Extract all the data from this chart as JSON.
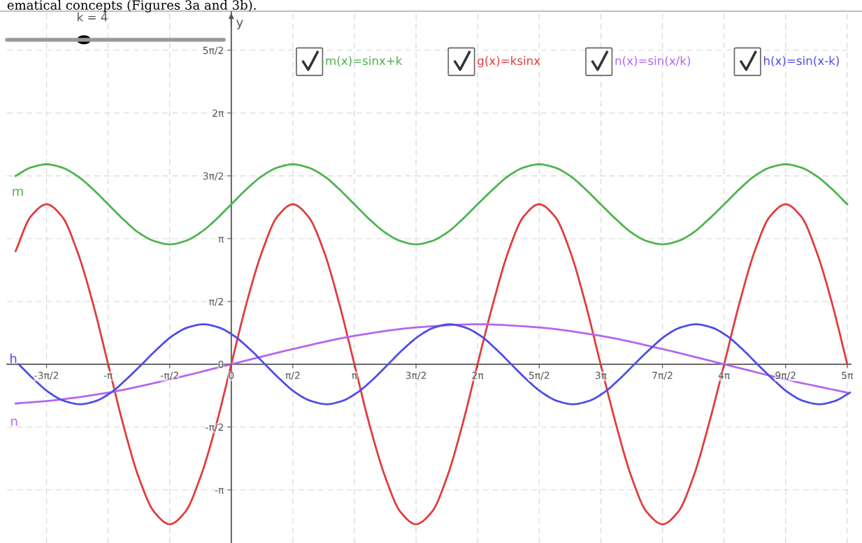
{
  "chart_data": {
    "type": "line",
    "ylabel": "y",
    "legend": "top",
    "grid": true,
    "marker": "none",
    "line_style": "solid",
    "xlim": [
      -5.72,
      15.8
    ],
    "ylim": [
      -4.47,
      8.83
    ],
    "xticks": [
      {
        "value": -4.712,
        "label": "-3π/2"
      },
      {
        "value": -3.1416,
        "label": "-π"
      },
      {
        "value": -1.5708,
        "label": "-π/2"
      },
      {
        "value": 0,
        "label": "0"
      },
      {
        "value": 1.5708,
        "label": "π/2"
      },
      {
        "value": 3.1416,
        "label": "π"
      },
      {
        "value": 4.712,
        "label": "3π/2"
      },
      {
        "value": 6.2832,
        "label": "2π"
      },
      {
        "value": 7.854,
        "label": "5π/2"
      },
      {
        "value": 9.4248,
        "label": "3π"
      },
      {
        "value": 10.9956,
        "label": "7π/2"
      },
      {
        "value": 12.5664,
        "label": "4π"
      },
      {
        "value": 14.1372,
        "label": "9π/2"
      },
      {
        "value": 15.708,
        "label": "5π"
      }
    ],
    "yticks": [
      {
        "value": -3.1416,
        "label": "-π"
      },
      {
        "value": -1.5708,
        "label": "-π/2"
      },
      {
        "value": 0,
        "label": "0"
      },
      {
        "value": 1.5708,
        "label": "π/2"
      },
      {
        "value": 3.1416,
        "label": "π"
      },
      {
        "value": 4.712,
        "label": "3π/2"
      },
      {
        "value": 6.2832,
        "label": "2π"
      },
      {
        "value": 7.854,
        "label": "5π/2"
      }
    ],
    "annotations": [
      "ematical concepts (Figures 3a and 3b).",
      "k = 4",
      "m",
      "h",
      "n"
    ],
    "series": [
      {
        "name": "m(x)=sinx+k",
        "color": "#4db34d",
        "x": [
          -5.5,
          -5.11,
          -4.71,
          -4.32,
          -3.93,
          -3.53,
          -3.14,
          -2.75,
          -2.36,
          -1.96,
          -1.57,
          -1.18,
          -0.79,
          -0.39,
          0,
          0.39,
          0.79,
          1.18,
          1.57,
          1.96,
          2.36,
          2.75,
          3.14,
          3.53,
          3.93,
          4.32,
          4.71,
          5.11,
          5.5,
          5.89,
          6.28,
          6.68,
          7.07,
          7.46,
          7.85,
          8.25,
          8.64,
          9.03,
          9.42,
          9.82,
          10.21,
          10.6,
          11.0,
          11.39,
          11.78,
          12.17,
          12.57,
          12.96,
          13.35,
          13.74,
          14.14,
          14.53,
          14.92,
          15.32,
          15.71
        ],
        "values": [
          4.71,
          4.92,
          5,
          4.92,
          4.71,
          4.38,
          4,
          3.62,
          3.29,
          3.08,
          3,
          3.08,
          3.29,
          3.62,
          4,
          4.38,
          4.71,
          4.92,
          5,
          4.92,
          4.71,
          4.38,
          4,
          3.62,
          3.29,
          3.08,
          3,
          3.08,
          3.29,
          3.62,
          4,
          4.38,
          4.71,
          4.92,
          5,
          4.92,
          4.71,
          4.38,
          4,
          3.62,
          3.29,
          3.08,
          3,
          3.08,
          3.29,
          3.62,
          4,
          4.38,
          4.71,
          4.92,
          5,
          4.92,
          4.71,
          4.38,
          4
        ]
      },
      {
        "name": "g(x)=ksinx",
        "color": "#e03c3c",
        "x": [
          -5.5,
          -5.11,
          -4.71,
          -4.32,
          -3.93,
          -3.53,
          -3.14,
          -2.75,
          -2.36,
          -1.96,
          -1.57,
          -1.18,
          -0.79,
          -0.39,
          0,
          0.39,
          0.79,
          1.18,
          1.57,
          1.96,
          2.36,
          2.75,
          3.14,
          3.53,
          3.93,
          4.32,
          4.71,
          5.11,
          5.5,
          5.89,
          6.28,
          6.68,
          7.07,
          7.46,
          7.85,
          8.25,
          8.64,
          9.03,
          9.42,
          9.82,
          10.21,
          10.6,
          11.0,
          11.39,
          11.78,
          12.17,
          12.57,
          12.96,
          13.35,
          13.74,
          14.14,
          14.53,
          14.92,
          15.32,
          15.71
        ],
        "values": [
          2.83,
          3.7,
          4,
          3.7,
          2.83,
          1.53,
          0,
          -1.53,
          -2.83,
          -3.7,
          -4,
          -3.7,
          -2.83,
          -1.53,
          0,
          1.53,
          2.83,
          3.7,
          4,
          3.7,
          2.83,
          1.53,
          0,
          -1.53,
          -2.83,
          -3.7,
          -4,
          -3.7,
          -2.83,
          -1.53,
          0,
          1.53,
          2.83,
          3.7,
          4,
          3.7,
          2.83,
          1.53,
          0,
          -1.53,
          -2.83,
          -3.7,
          -4,
          -3.7,
          -2.83,
          -1.53,
          0,
          1.53,
          2.83,
          3.7,
          4,
          3.7,
          2.83,
          1.53,
          0
        ]
      },
      {
        "name": "n(x)=sin(x/k)",
        "color": "#b366f2",
        "x": [
          -5.5,
          -4.71,
          -3.14,
          -1.57,
          0,
          1.57,
          3.14,
          4.71,
          6.28,
          7.85,
          9.42,
          11.0,
          12.57,
          14.14,
          15.71
        ],
        "values": [
          -0.98,
          -0.92,
          -0.71,
          -0.38,
          0,
          0.38,
          0.71,
          0.92,
          1,
          0.92,
          0.71,
          0.38,
          0,
          -0.38,
          -0.71
        ]
      },
      {
        "name": "h(x)=sin(x-k)",
        "color": "#4d4de6",
        "x": [
          -5.42,
          -5.03,
          -4.64,
          -4.25,
          -3.85,
          -3.46,
          -3.07,
          -2.68,
          -2.28,
          -1.89,
          -1.5,
          -1.11,
          -0.71,
          -0.32,
          0.07,
          0.47,
          0.86,
          1.25,
          1.64,
          2.04,
          2.43,
          2.82,
          3.21,
          3.61,
          4.0,
          4.39,
          4.79,
          5.18,
          5.57,
          5.96,
          6.36,
          6.75,
          7.14,
          7.53,
          7.93,
          8.32,
          8.71,
          9.11,
          9.5,
          9.89,
          10.28,
          10.68,
          11.07,
          11.46,
          11.85,
          12.25,
          12.64,
          13.03,
          13.42,
          13.82,
          14.21,
          14.6,
          15.0,
          15.39,
          15.78
        ],
        "values": [
          0,
          -0.38,
          -0.71,
          -0.92,
          -1,
          -0.92,
          -0.71,
          -0.38,
          0,
          0.38,
          0.71,
          0.92,
          1,
          0.92,
          0.71,
          0.38,
          0,
          -0.38,
          -0.71,
          -0.92,
          -1,
          -0.92,
          -0.71,
          -0.38,
          0,
          0.38,
          0.71,
          0.92,
          1,
          0.92,
          0.71,
          0.38,
          0,
          -0.38,
          -0.71,
          -0.92,
          -1,
          -0.92,
          -0.71,
          -0.38,
          0,
          0.38,
          0.71,
          0.92,
          1,
          0.92,
          0.71,
          0.38,
          0,
          -0.38,
          -0.71,
          -0.92,
          -1,
          -0.92,
          -0.71
        ]
      }
    ]
  }
}
